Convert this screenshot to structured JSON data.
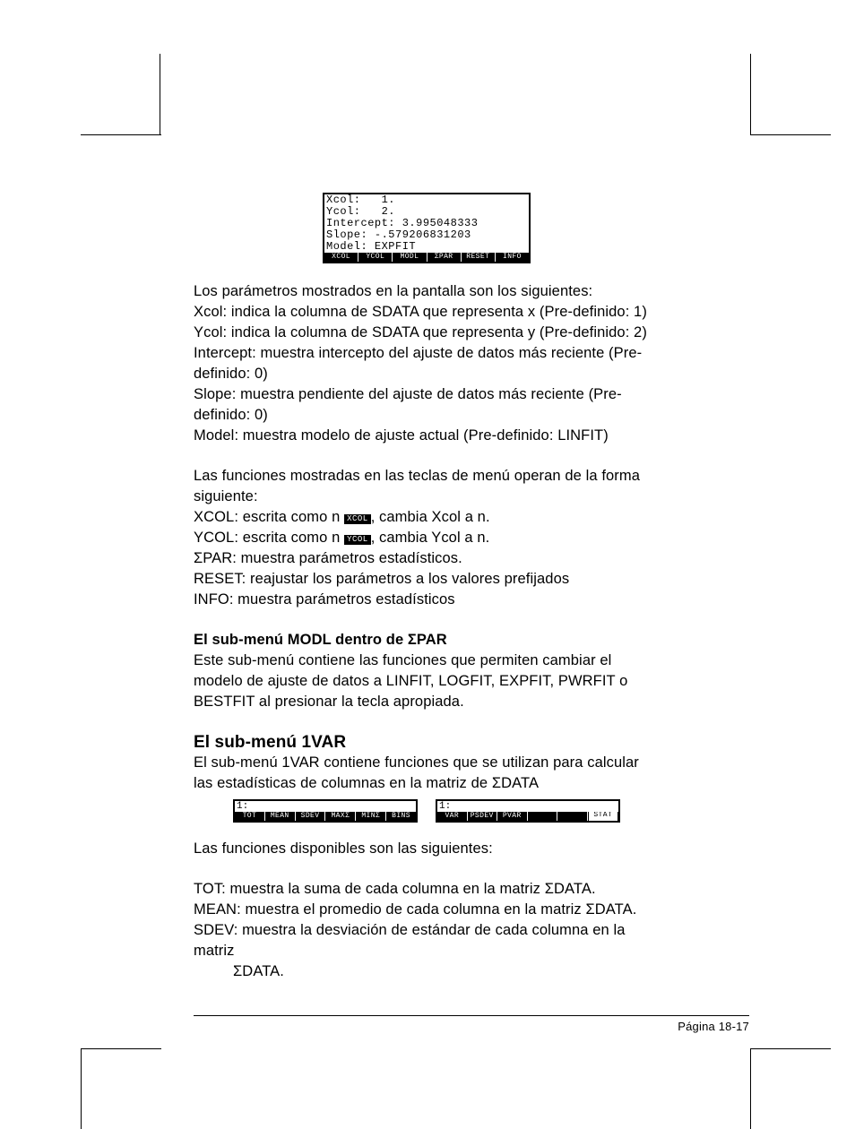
{
  "calc_main": {
    "lines": [
      "Xcol:   1.",
      "Ycol:   2.",
      "Intercept: 3.995048333",
      "Slope: -.579206831203",
      "Model: EXPFIT"
    ],
    "menu": [
      "XCOL",
      "YCOL",
      "MODL",
      "ΣPAR",
      "RESET",
      "INFO"
    ]
  },
  "intro_line": "Los parámetros mostrados en la pantalla son los siguientes:",
  "param_lines": [
    "Xcol: indica la columna de SDATA que representa x (Pre-definido: 1)",
    "Ycol: indica la columna de SDATA que representa y (Pre-definido: 2)",
    "Intercept: muestra intercepto del ajuste de datos más reciente (Pre-definido: 0)",
    "Slope: muestra pendiente del ajuste de datos más reciente (Pre-definido: 0)",
    "Model: muestra modelo de ajuste actual (Pre-definido: LINFIT)"
  ],
  "func_intro": "Las funciones mostradas en las teclas de menú operan de la forma siguiente:",
  "func_xcol": {
    "pre": "XCOL: escrita como n ",
    "label": "XCOL",
    "post": ", cambia Xcol a n."
  },
  "func_ycol": {
    "pre": "YCOL: escrita como n ",
    "label": "YCOL",
    "post": ", cambia Ycol a n."
  },
  "func_sigpar": "ΣPAR: muestra parámetros estadísticos.",
  "func_reset": "RESET: reajustar los parámetros a los valores prefijados",
  "func_info": "INFO: muestra parámetros estadísticos",
  "modl_head": "El sub-menú MODL dentro de ΣPAR",
  "modl_body": "Este sub-menú contiene las funciones que permiten cambiar el modelo de ajuste de datos a  LINFIT, LOGFIT, EXPFIT, PWRFIT o BESTFIT al presionar la tecla apropiada.",
  "sec_1var_head": "El sub-menú 1VAR",
  "sec_1var_body": "El sub-menú 1VAR contiene funciones que se utilizan para calcular las estadísticas de columnas en la matriz de ΣDATA",
  "mini_left": {
    "top": "1:",
    "menu": [
      "TOT",
      "MEAN",
      "SDEV",
      "MAXΣ",
      "MINΣ",
      "BINS"
    ]
  },
  "mini_right": {
    "top": "1:",
    "menu": [
      "VAR",
      "PSDEV",
      "PVAR",
      "",
      "",
      "STAT"
    ],
    "hollow_last": true
  },
  "avail_line": "Las funciones disponibles son las siguientes:",
  "desc_tot": "TOT: muestra la suma de cada columna en la matriz ΣDATA.",
  "desc_mean": "MEAN: muestra el promedio de cada columna en la matriz ΣDATA.",
  "desc_sdev": "SDEV: muestra la desviación de estándar de cada columna en la matriz",
  "desc_sdev2": "ΣDATA.",
  "page_num": "Página 18-17"
}
